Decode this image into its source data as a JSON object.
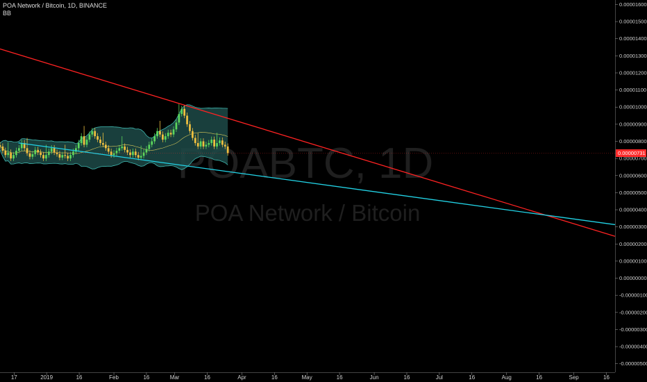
{
  "header": {
    "symbol_line": "POA Network / Bitcoin, 1D, BINANCE",
    "indicator": "BB"
  },
  "watermark": {
    "ticker": "POABTC, 1D",
    "name": "POA Network / Bitcoin"
  },
  "colors": {
    "background": "#000000",
    "up": "#26a69a",
    "down": "#ef5350",
    "resistance": "#ff2222",
    "support": "#22d3e6",
    "bb_fill": "#1d4a48",
    "price_label": "#ff2a2a"
  },
  "chart_data": {
    "type": "candlestick",
    "title": "POA Network / Bitcoin, 1D, BINANCE",
    "ylim": [
      -5.5e-06,
      1.61e-05
    ],
    "y_ticks": [
      "0.00001600",
      "0.00001500",
      "0.00001400",
      "0.00001300",
      "0.00001200",
      "0.00001100",
      "0.00001000",
      "0.00000900",
      "0.00000800",
      "0.00000700",
      "0.00000600",
      "0.00000500",
      "0.00000400",
      "0.00000300",
      "0.00000200",
      "0.00000100",
      "0.00000000",
      "-0.00000100",
      "-0.00000200",
      "-0.00000300",
      "-0.00000400",
      "-0.00000500"
    ],
    "x_ticks": [
      "17",
      "2019",
      "16",
      "Feb",
      "16",
      "Mar",
      "16",
      "Apr",
      "16",
      "May",
      "16",
      "Jun",
      "16",
      "Jul",
      "16",
      "Aug",
      "16",
      "Sep",
      "16"
    ],
    "x_tick_days": [
      16,
      31,
      46,
      62,
      77,
      90,
      105,
      121,
      136,
      151,
      166,
      182,
      197,
      212,
      227,
      243,
      258,
      274,
      289
    ],
    "x_range_days": [
      9.5,
      293
    ],
    "last_price": {
      "value": 7.31e-06,
      "label": "0.00000731"
    },
    "candle_start_day": 9.5,
    "closes": [
      7.7e-06,
      7.45e-06,
      7.2e-06,
      7.35e-06,
      7e-06,
      7.2e-06,
      7.45e-06,
      7.6e-06,
      7.9e-06,
      7.6e-06,
      7.3e-06,
      7.1e-06,
      7.25e-06,
      7.5e-06,
      7.35e-06,
      7.2e-06,
      7e-06,
      7.2e-06,
      7.4e-06,
      7.6e-06,
      7.35e-06,
      7.25e-06,
      7.05e-06,
      7.2e-06,
      7.15e-06,
      7e-06,
      7.2e-06,
      7.4e-06,
      7.6e-06,
      7.9e-06,
      8.3e-06,
      7.8e-06,
      8.1e-06,
      8.4e-06,
      8.6e-06,
      8.3e-06,
      8.1e-06,
      7.9e-06,
      7.8e-06,
      7.6e-06,
      7.4e-06,
      7.2e-06,
      7.3e-06,
      7.45e-06,
      7.6e-06,
      7.7e-06,
      7.5e-06,
      7.35e-06,
      7.2e-06,
      7.4e-06,
      7.2e-06,
      7.05e-06,
      7.15e-06,
      7.35e-06,
      7.55e-06,
      7.8e-06,
      8e-06,
      8.3e-06,
      8.6e-06,
      8.4e-06,
      8.1e-06,
      8.3e-06,
      8.5e-06,
      8.4e-06,
      8.7e-06,
      9.1e-06,
      9.6e-06,
      9.9e-06,
      9.5e-06,
      9e-06,
      8.6e-06,
      8.2e-06,
      7.9e-06,
      7.7e-06,
      8e-06,
      7.7e-06,
      7.8e-06,
      7.9e-06,
      8.1e-06,
      7.7e-06,
      7.9e-06,
      8.05e-06,
      7.8e-06,
      7.7e-06,
      7.31e-06
    ],
    "series": [
      {
        "name": "resistance",
        "x_days": [
          0,
          293
        ],
        "y": [
          1.377e-05,
          2.45e-06
        ]
      },
      {
        "name": "support",
        "x_days": [
          18,
          293
        ],
        "y": [
          7.91e-06,
          3.13e-06
        ]
      }
    ]
  }
}
